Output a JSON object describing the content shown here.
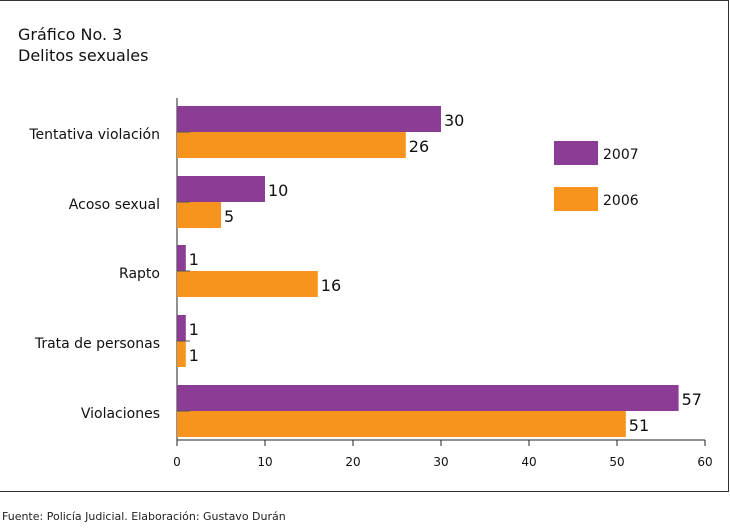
{
  "title": "Gráfico No. 3",
  "subtitle": "Delitos sexuales",
  "footer": "Fuente: Policía Judicial. Elaboración: Gustavo Durán",
  "colors": {
    "2007": "#8b3d96",
    "2006": "#f7941d"
  },
  "chart_data": {
    "type": "bar",
    "orientation": "horizontal",
    "categories": [
      "Tentativa violación",
      "Acoso sexual",
      "Rapto",
      "Trata de personas",
      "Violaciones"
    ],
    "series": [
      {
        "name": "2007",
        "values": [
          30,
          10,
          1,
          1,
          57
        ]
      },
      {
        "name": "2006",
        "values": [
          26,
          5,
          16,
          1,
          51
        ]
      }
    ],
    "xlim": [
      0,
      60
    ],
    "xticks": [
      0,
      10,
      20,
      30,
      40,
      50,
      60
    ],
    "grid": false,
    "legend": "right"
  }
}
